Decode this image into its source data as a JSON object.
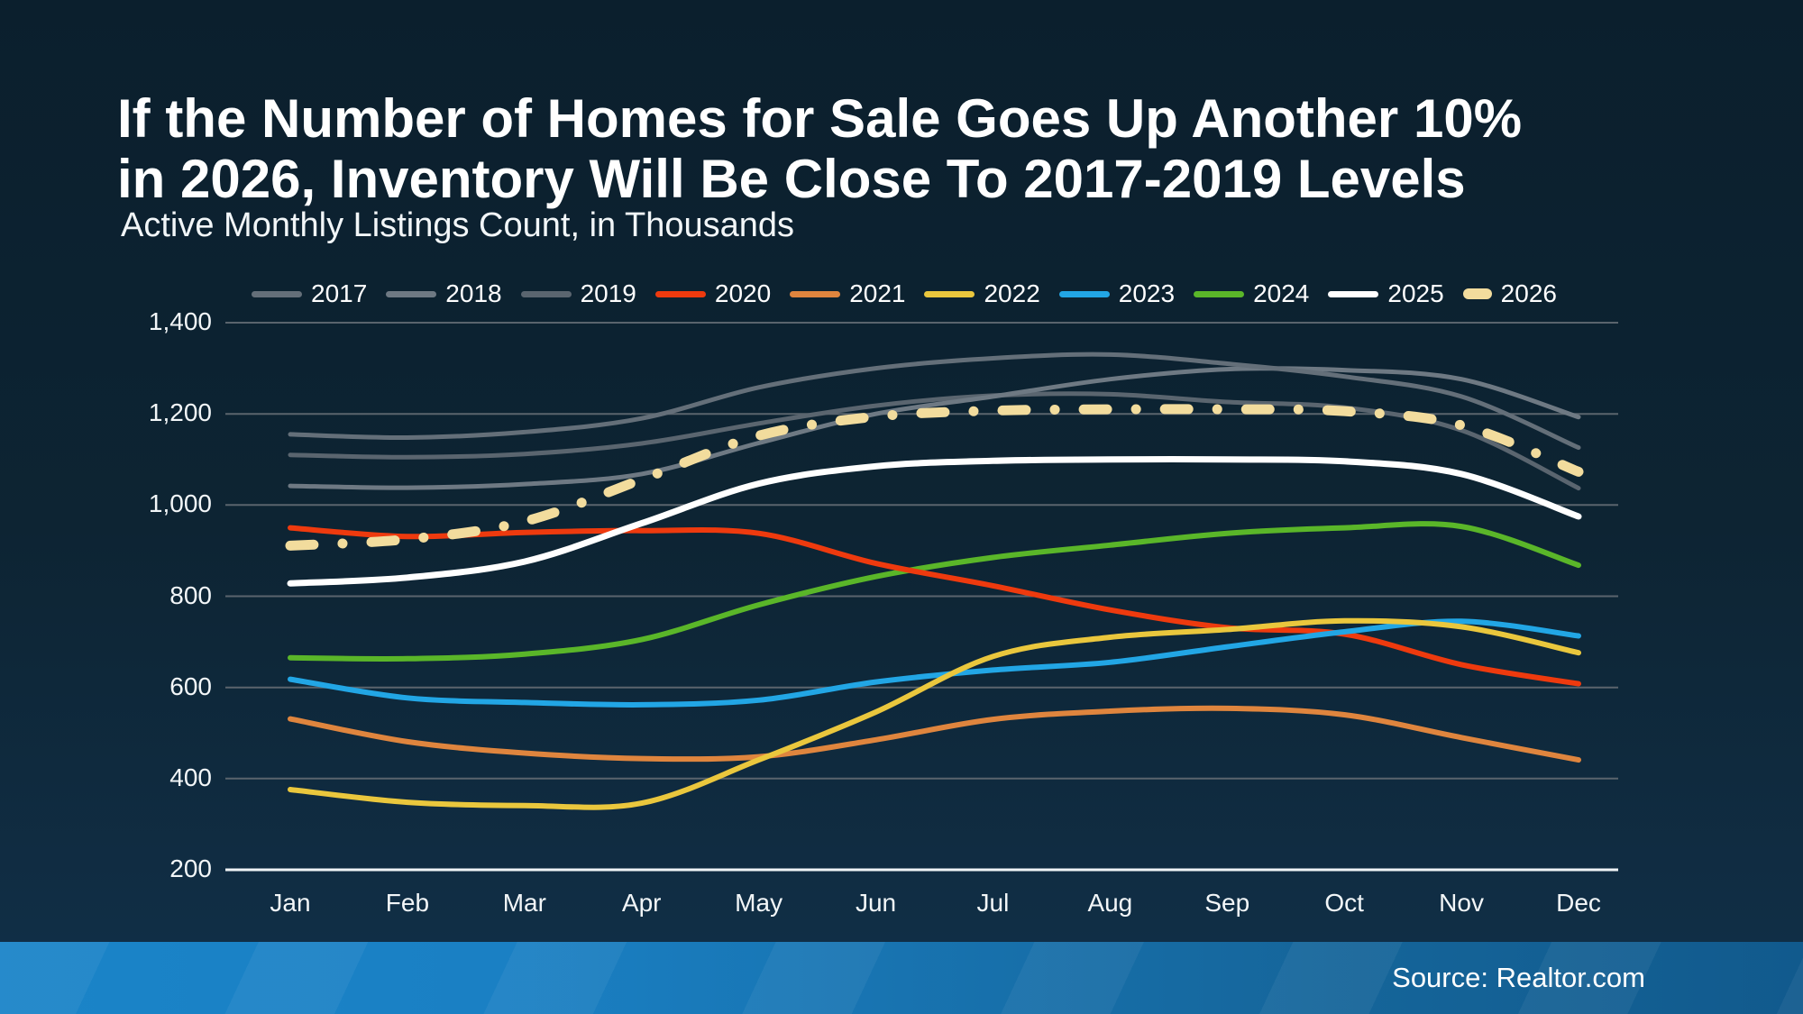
{
  "header": {
    "title": "If the Number of Homes for Sale Goes Up Another 10%\nin 2026, Inventory Will Be Close To 2017-2019 Levels",
    "subtitle": "Active Monthly Listings Count, in Thousands"
  },
  "footer": {
    "source": "Source: Realtor.com"
  },
  "colors": {
    "background_top": "#0b1f2d",
    "background_bottom": "#113049",
    "gridline": "#5a646d",
    "axis_line": "#f0f4f6",
    "text": "#ffffff",
    "footer_bar_left": "#1a84c8",
    "footer_bar_right": "#115a8d"
  },
  "chart_data": {
    "type": "line",
    "title": "If the Number of Homes for Sale Goes Up Another 10% in 2026, Inventory Will Be Close To 2017-2019 Levels",
    "subtitle": "Active Monthly Listings Count, in Thousands",
    "xlabel": "",
    "ylabel": "Active Monthly Listings Count, in Thousands",
    "categories": [
      "Jan",
      "Feb",
      "Mar",
      "Apr",
      "May",
      "Jun",
      "Jul",
      "Aug",
      "Sep",
      "Oct",
      "Nov",
      "Dec"
    ],
    "ylim": [
      200,
      1400
    ],
    "yticks": [
      {
        "value": 200,
        "label": "200"
      },
      {
        "value": 400,
        "label": "400"
      },
      {
        "value": 600,
        "label": "600"
      },
      {
        "value": 800,
        "label": "800"
      },
      {
        "value": 1000,
        "label": "1,000"
      },
      {
        "value": 1200,
        "label": "1,200"
      },
      {
        "value": 1400,
        "label": "1,400"
      }
    ],
    "grid": "horizontal",
    "legend_position": "top",
    "series": [
      {
        "name": "2017",
        "color": "#646f79",
        "width": 5,
        "dashed": false,
        "values": [
          1155,
          1148,
          1160,
          1190,
          1258,
          1300,
          1322,
          1330,
          1310,
          1282,
          1238,
          1126
        ]
      },
      {
        "name": "2018",
        "color": "#6e7983",
        "width": 5,
        "dashed": false,
        "values": [
          1042,
          1038,
          1046,
          1068,
          1136,
          1200,
          1238,
          1276,
          1298,
          1296,
          1276,
          1193
        ]
      },
      {
        "name": "2019",
        "color": "#5a656f",
        "width": 5,
        "dashed": false,
        "values": [
          1110,
          1105,
          1112,
          1135,
          1179,
          1218,
          1240,
          1243,
          1226,
          1214,
          1164,
          1037
        ]
      },
      {
        "name": "2020",
        "color": "#ee3a0e",
        "width": 6,
        "dashed": false,
        "values": [
          950,
          931,
          940,
          944,
          938,
          872,
          823,
          770,
          731,
          717,
          650,
          608
        ]
      },
      {
        "name": "2021",
        "color": "#df853e",
        "width": 6,
        "dashed": false,
        "values": [
          531,
          481,
          456,
          444,
          448,
          485,
          530,
          548,
          554,
          540,
          490,
          441
        ]
      },
      {
        "name": "2022",
        "color": "#eac73d",
        "width": 6,
        "dashed": false,
        "values": [
          376,
          348,
          341,
          346,
          441,
          546,
          668,
          710,
          727,
          746,
          733,
          676
        ]
      },
      {
        "name": "2023",
        "color": "#22a6e5",
        "width": 6,
        "dashed": false,
        "values": [
          618,
          577,
          567,
          562,
          572,
          612,
          638,
          655,
          689,
          722,
          745,
          713
        ]
      },
      {
        "name": "2024",
        "color": "#5ab629",
        "width": 6,
        "dashed": false,
        "values": [
          665,
          663,
          673,
          705,
          781,
          843,
          885,
          912,
          938,
          950,
          953,
          868
        ]
      },
      {
        "name": "2025",
        "color": "#ffffff",
        "width": 7,
        "dashed": false,
        "values": [
          828,
          841,
          876,
          960,
          1047,
          1085,
          1097,
          1100,
          1100,
          1096,
          1068,
          975
        ]
      },
      {
        "name": "2026",
        "color": "#f2dc9d",
        "width": 11,
        "dashed": true,
        "values": [
          911,
          925,
          964,
          1056,
          1152,
          1194,
          1207,
          1210,
          1210,
          1206,
          1175,
          1073
        ]
      }
    ],
    "draw_order": [
      "2019",
      "2018",
      "2017",
      "2024",
      "2021",
      "2020",
      "2023",
      "2022",
      "2025",
      "2026"
    ]
  }
}
